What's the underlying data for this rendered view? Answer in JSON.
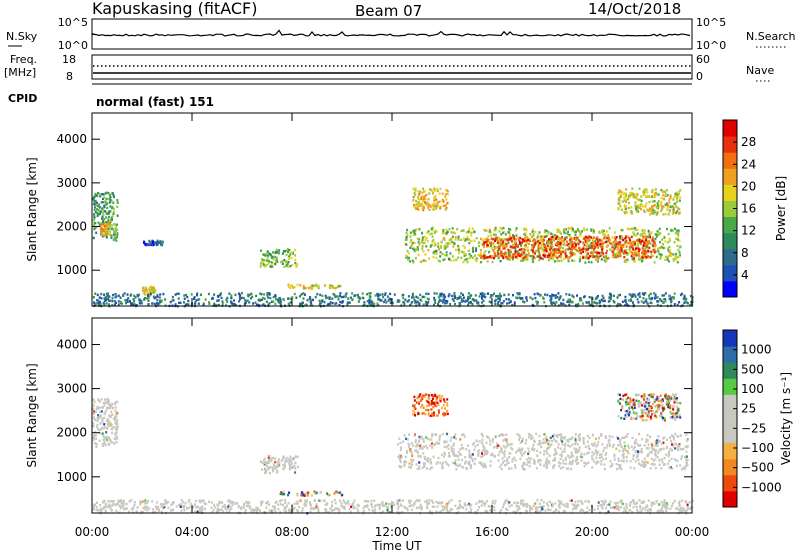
{
  "header": {
    "station": "Kapuskasing (fitACF)",
    "beam": "Beam 07",
    "date": "14/Oct/2018"
  },
  "top_panels": {
    "nsky": {
      "label": "N.Sky",
      "ticks": [
        "10^5",
        "10^0"
      ]
    },
    "nsearch": {
      "label": "N.Search",
      "ticks": [
        "10^5",
        "10^0"
      ]
    },
    "freq": {
      "label1": "Freq.",
      "label2": "[MHz]",
      "ticks": [
        "18",
        "8"
      ]
    },
    "nave": {
      "label": "Nave",
      "ticks": [
        "60",
        "0"
      ]
    },
    "cpid": {
      "label": "CPID",
      "mode": "normal (fast) 151"
    }
  },
  "colors": {
    "power_scale": [
      "#0000ff",
      "#1f4fb5",
      "#2e6c8a",
      "#2e8a5a",
      "#4aa84a",
      "#9acb3a",
      "#e8d21e",
      "#f0a020",
      "#f07010",
      "#e83010",
      "#e00000"
    ],
    "velocity_scale": [
      "#e00000",
      "#ee4a10",
      "#f08a20",
      "#f5b040",
      "#c8c8c0",
      "#c8c8c0",
      "#c8c8c0",
      "#55cc44",
      "#2e8a5a",
      "#2f6ca8",
      "#1636b8"
    ],
    "ground_scatter": "#c8c8c0"
  },
  "chart_data": [
    {
      "type": "heatmap",
      "panel": "power",
      "ylabel": "Slant Range [km]",
      "xlabel": "Time UT",
      "x_ticks": [
        "00:00",
        "04:00",
        "08:00",
        "12:00",
        "16:00",
        "20:00",
        "00:00"
      ],
      "y_ticks": [
        1000,
        2000,
        3000,
        4000
      ],
      "ylim": [
        180,
        4600
      ],
      "xlim_hours": [
        0,
        24
      ],
      "colorbar": {
        "label": "Power [dB]",
        "ticks": [
          4,
          8,
          12,
          16,
          20,
          24,
          28
        ],
        "range": [
          0,
          32
        ]
      },
      "regions": [
        {
          "t0": 0.0,
          "t1": 1.0,
          "r0": 1700,
          "r1": 2800,
          "level": 12
        },
        {
          "t0": 0.3,
          "t1": 0.7,
          "r0": 1800,
          "r1": 2100,
          "level": 20
        },
        {
          "t0": 2.0,
          "t1": 2.8,
          "r0": 1600,
          "r1": 1700,
          "level": 6
        },
        {
          "t0": 2.0,
          "t1": 2.5,
          "r0": 450,
          "r1": 650,
          "level": 18
        },
        {
          "t0": 6.7,
          "t1": 8.2,
          "r0": 1100,
          "r1": 1500,
          "level": 14
        },
        {
          "t0": 7.5,
          "t1": 10.0,
          "r0": 600,
          "r1": 700,
          "level": 18
        },
        {
          "t0": 0.0,
          "t1": 24.0,
          "r0": 200,
          "r1": 500,
          "level": 8
        },
        {
          "t0": 12.8,
          "t1": 14.2,
          "r0": 2400,
          "r1": 2900,
          "level": 20
        },
        {
          "t0": 12.5,
          "t1": 23.5,
          "r0": 1200,
          "r1": 2000,
          "level": 16
        },
        {
          "t0": 15.5,
          "t1": 22.5,
          "r0": 1300,
          "r1": 1800,
          "level": 26
        },
        {
          "t0": 21.0,
          "t1": 23.5,
          "r0": 2300,
          "r1": 2900,
          "level": 18
        }
      ]
    },
    {
      "type": "heatmap",
      "panel": "velocity",
      "ylabel": "Slant Range [km]",
      "xlabel": "Time UT",
      "x_ticks": [
        "00:00",
        "04:00",
        "08:00",
        "12:00",
        "16:00",
        "20:00",
        "00:00"
      ],
      "y_ticks": [
        1000,
        2000,
        3000,
        4000
      ],
      "ylim": [
        180,
        4600
      ],
      "xlim_hours": [
        0,
        24
      ],
      "colorbar": {
        "label": "Velocity [m s⁻¹]",
        "ticks": [
          "1000",
          "500",
          "100",
          "25",
          "−25",
          "−100",
          "−500",
          "−1000"
        ]
      },
      "regions": [
        {
          "t0": 0.0,
          "t1": 1.0,
          "r0": 1700,
          "r1": 2800,
          "kind": "ground"
        },
        {
          "t0": 6.7,
          "t1": 8.2,
          "r0": 1100,
          "r1": 1500,
          "kind": "ground"
        },
        {
          "t0": 7.5,
          "t1": 10.0,
          "r0": 600,
          "r1": 700,
          "kind": "mixed"
        },
        {
          "t0": 0.0,
          "t1": 24.0,
          "r0": 200,
          "r1": 500,
          "kind": "ground"
        },
        {
          "t0": 12.8,
          "t1": 14.2,
          "r0": 2400,
          "r1": 2900,
          "kind": "negative"
        },
        {
          "t0": 12.2,
          "t1": 23.8,
          "r0": 1200,
          "r1": 2000,
          "kind": "ground"
        },
        {
          "t0": 21.0,
          "t1": 23.5,
          "r0": 2300,
          "r1": 2900,
          "kind": "mixed"
        }
      ]
    }
  ]
}
